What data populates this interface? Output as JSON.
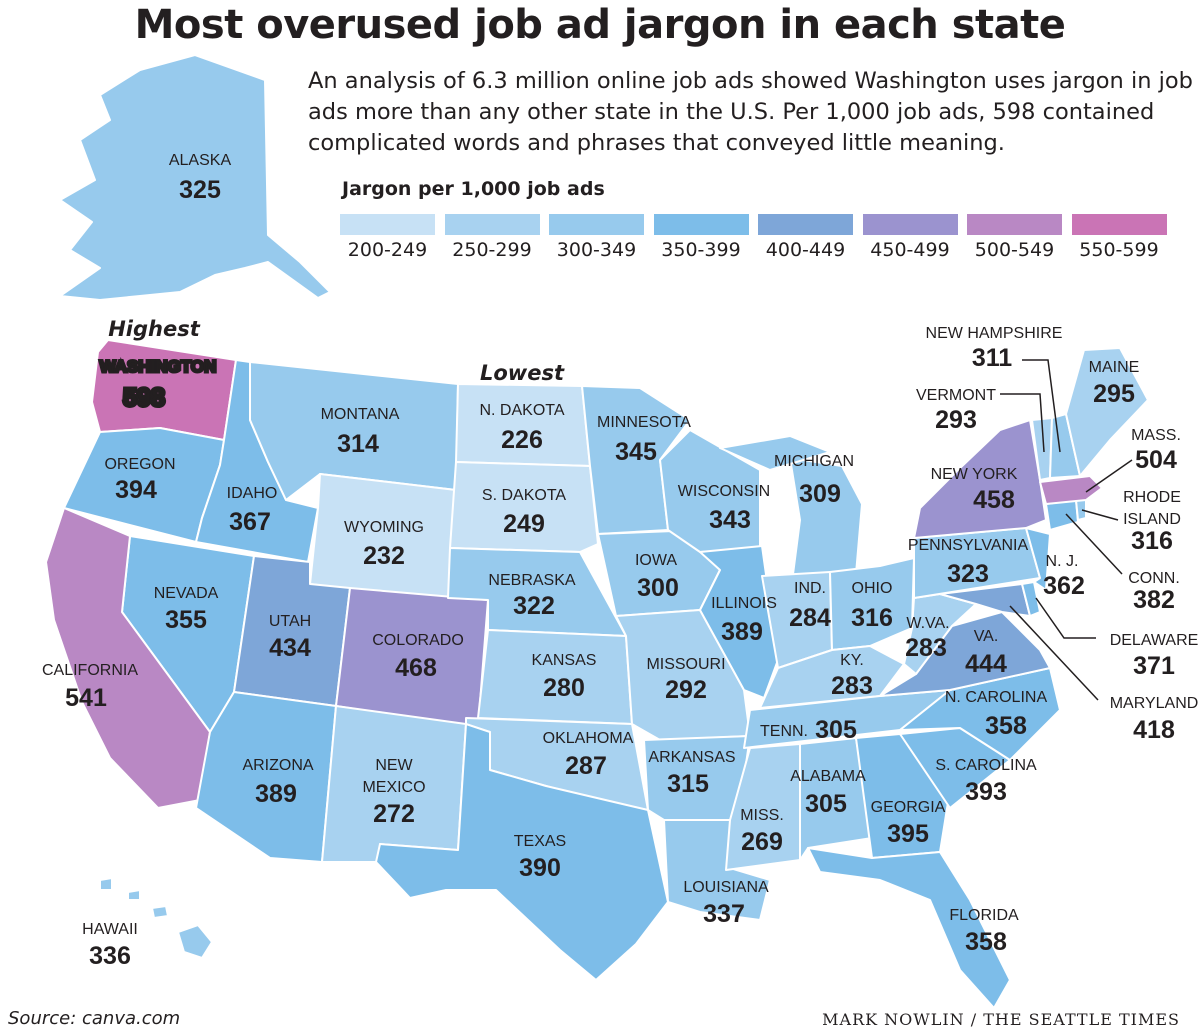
{
  "title": "Most overused job ad jargon in each state",
  "intro": "An analysis of 6.3 million online job ads showed Washington uses jargon in job ads more than any other state in the U.S. Per 1,000 job ads, 598 contained complicated words and phrases that conveyed little meaning.",
  "legend": {
    "title": "Jargon per 1,000 job ads",
    "bins": [
      {
        "label": "200-249",
        "color": "#c7e1f5"
      },
      {
        "label": "250-299",
        "color": "#a8d2f0"
      },
      {
        "label": "300-349",
        "color": "#97caed"
      },
      {
        "label": "350-399",
        "color": "#7dbde9"
      },
      {
        "label": "400-449",
        "color": "#7ea6d8"
      },
      {
        "label": "450-499",
        "color": "#9b93cf"
      },
      {
        "label": "500-549",
        "color": "#b988c4"
      },
      {
        "label": "550-599",
        "color": "#ca74b5"
      }
    ]
  },
  "annotations": {
    "highest": "Highest",
    "lowest": "Lowest"
  },
  "states": {
    "alaska": {
      "name": "ALASKA",
      "value": 325
    },
    "hawaii": {
      "name": "HAWAII",
      "value": 336
    },
    "washington": {
      "name": "WASHINGTON",
      "value": 598
    },
    "oregon": {
      "name": "OREGON",
      "value": 394
    },
    "california": {
      "name": "CALIFORNIA",
      "value": 541
    },
    "idaho": {
      "name": "IDAHO",
      "value": 367
    },
    "nevada": {
      "name": "NEVADA",
      "value": 355
    },
    "montana": {
      "name": "MONTANA",
      "value": 314
    },
    "wyoming": {
      "name": "WYOMING",
      "value": 232
    },
    "utah": {
      "name": "UTAH",
      "value": 434
    },
    "arizona": {
      "name": "ARIZONA",
      "value": 389
    },
    "colorado": {
      "name": "COLORADO",
      "value": 468
    },
    "newmexico": {
      "name": "NEW MEXICO",
      "value": 272
    },
    "ndakota": {
      "name": "N. DAKOTA",
      "value": 226
    },
    "sdakota": {
      "name": "S. DAKOTA",
      "value": 249
    },
    "nebraska": {
      "name": "NEBRASKA",
      "value": 322
    },
    "kansas": {
      "name": "KANSAS",
      "value": 280
    },
    "oklahoma": {
      "name": "OKLAHOMA",
      "value": 287
    },
    "texas": {
      "name": "TEXAS",
      "value": 390
    },
    "minnesota": {
      "name": "MINNESOTA",
      "value": 345
    },
    "iowa": {
      "name": "IOWA",
      "value": 300
    },
    "missouri": {
      "name": "MISSOURI",
      "value": 292
    },
    "arkansas": {
      "name": "ARKANSAS",
      "value": 315
    },
    "louisiana": {
      "name": "LOUISIANA",
      "value": 337
    },
    "wisconsin": {
      "name": "WISCONSIN",
      "value": 343
    },
    "illinois": {
      "name": "ILLINOIS",
      "value": 389
    },
    "michigan": {
      "name": "MICHIGAN",
      "value": 309
    },
    "indiana": {
      "name": "IND.",
      "value": 284
    },
    "ohio": {
      "name": "OHIO",
      "value": 316
    },
    "kentucky": {
      "name": "KY.",
      "value": 283
    },
    "tennessee": {
      "name": "TENN.",
      "value": 305
    },
    "mississippi": {
      "name": "MISS.",
      "value": 269
    },
    "alabama": {
      "name": "ALABAMA",
      "value": 305
    },
    "georgia": {
      "name": "GEORGIA",
      "value": 395
    },
    "florida": {
      "name": "FLORIDA",
      "value": 358
    },
    "scarolina": {
      "name": "S. CAROLINA",
      "value": 393
    },
    "ncarolina": {
      "name": "N. CAROLINA",
      "value": 358
    },
    "virginia": {
      "name": "VA.",
      "value": 444
    },
    "wvirginia": {
      "name": "W.VA.",
      "value": 283
    },
    "pennsylvania": {
      "name": "PENNSYLVANIA",
      "value": 323
    },
    "newyork": {
      "name": "NEW YORK",
      "value": 458
    },
    "newjersey": {
      "name": "N. J.",
      "value": 362
    },
    "delaware": {
      "name": "DELAWARE",
      "value": 371
    },
    "maryland": {
      "name": "MARYLAND",
      "value": 418
    },
    "connecticut": {
      "name": "CONN.",
      "value": 382
    },
    "rhodeisland": {
      "name": "RHODE ISLAND",
      "value": 316
    },
    "massachusetts": {
      "name": "MASS.",
      "value": 504
    },
    "vermont": {
      "name": "VERMONT",
      "value": 293
    },
    "newhampshire": {
      "name": "NEW HAMPSHIRE",
      "value": 311
    },
    "maine": {
      "name": "MAINE",
      "value": 295
    }
  },
  "source": "Source: canva.com",
  "credit": "MARK NOWLIN / THE SEATTLE TIMES"
}
